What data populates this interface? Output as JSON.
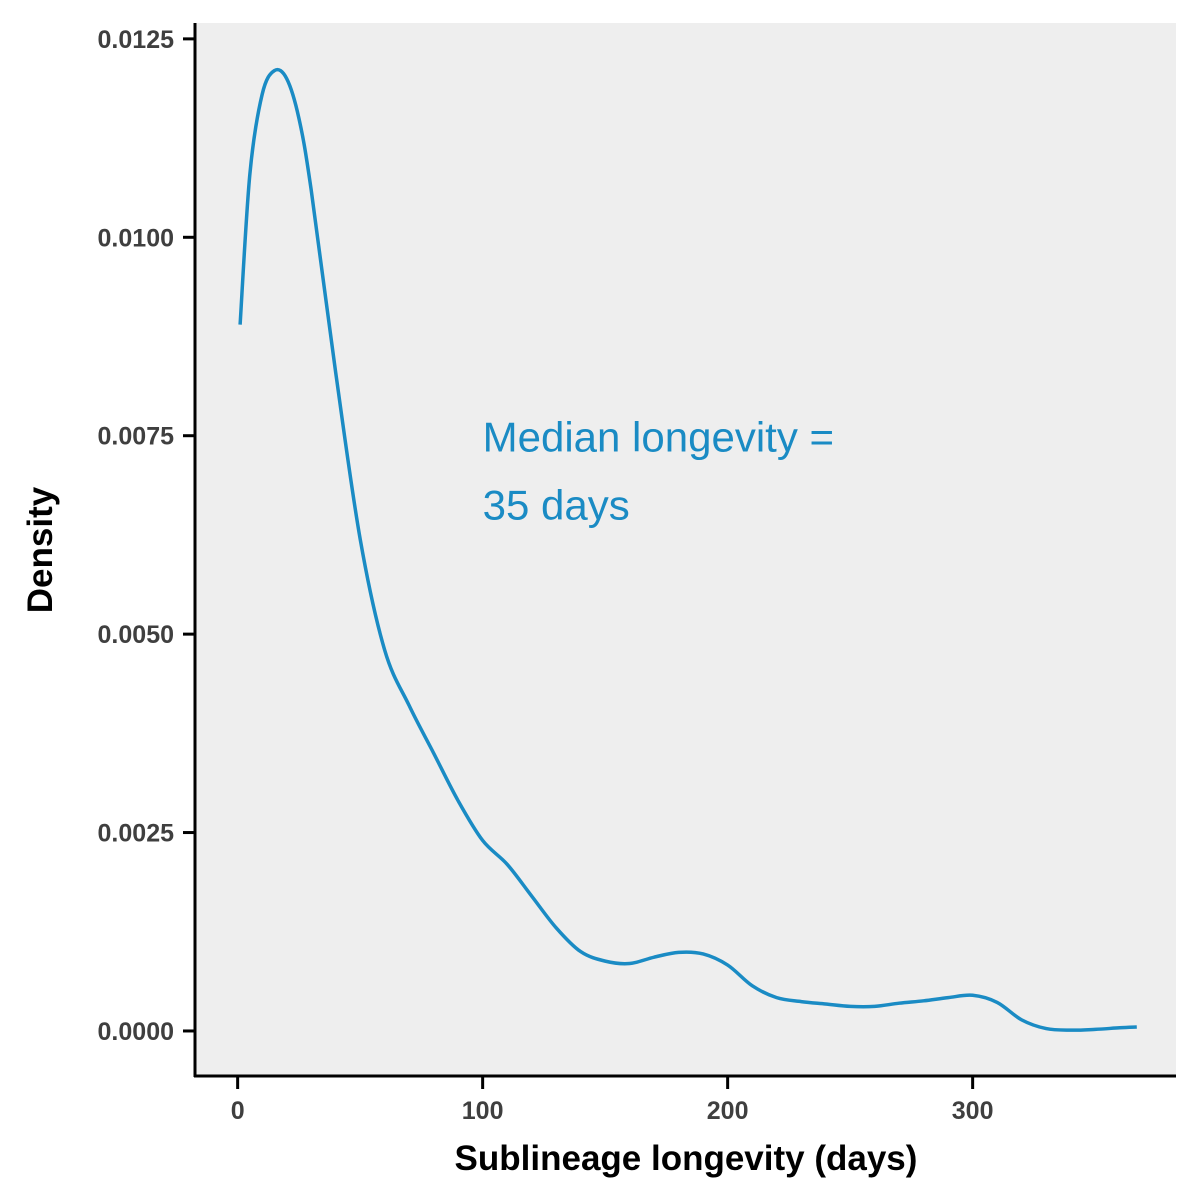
{
  "chart_data": {
    "type": "line",
    "xlabel": "Sublineage longevity (days)",
    "ylabel": "Density",
    "xlim": [
      -17,
      383
    ],
    "ylim": [
      -0.00058,
      0.0127
    ],
    "x_ticks": [
      0,
      100,
      200,
      300
    ],
    "x_tick_labels": [
      "0",
      "100",
      "200",
      "300"
    ],
    "y_ticks": [
      0.0,
      0.0025,
      0.005,
      0.0075,
      0.01,
      0.0125
    ],
    "y_tick_labels": [
      "0.0000",
      "0.0025",
      "0.0050",
      "0.0075",
      "0.0100",
      "0.0125"
    ],
    "grid": false,
    "panel_background": "#eeeeee",
    "line_color": "#1a8bc4",
    "series": [
      {
        "x": [
          1,
          5,
          10,
          15,
          20,
          25,
          30,
          40,
          50,
          60,
          70,
          80,
          90,
          100,
          110,
          120,
          130,
          140,
          150,
          160,
          170,
          180,
          190,
          200,
          210,
          220,
          230,
          240,
          250,
          260,
          270,
          280,
          290,
          300,
          310,
          320,
          330,
          340,
          350,
          360,
          367
        ],
        "y": [
          0.0089,
          0.0108,
          0.0118,
          0.0121,
          0.012,
          0.0115,
          0.0106,
          0.0083,
          0.0062,
          0.0048,
          0.0041,
          0.0035,
          0.0029,
          0.0024,
          0.0021,
          0.0017,
          0.0013,
          0.001,
          0.00088,
          0.00085,
          0.00093,
          0.00099,
          0.00097,
          0.00083,
          0.00057,
          0.00042,
          0.00037,
          0.00034,
          0.00031,
          0.00031,
          0.00035,
          0.00038,
          0.00042,
          0.00045,
          0.00036,
          0.00014,
          3e-05,
          1e-05,
          2e-05,
          4e-05,
          5e-05
        ]
      }
    ],
    "annotation": {
      "lines": [
        "Median longevity =",
        "35 days"
      ],
      "x": 100,
      "y": 0.0073,
      "color": "#1a8bc4"
    }
  }
}
